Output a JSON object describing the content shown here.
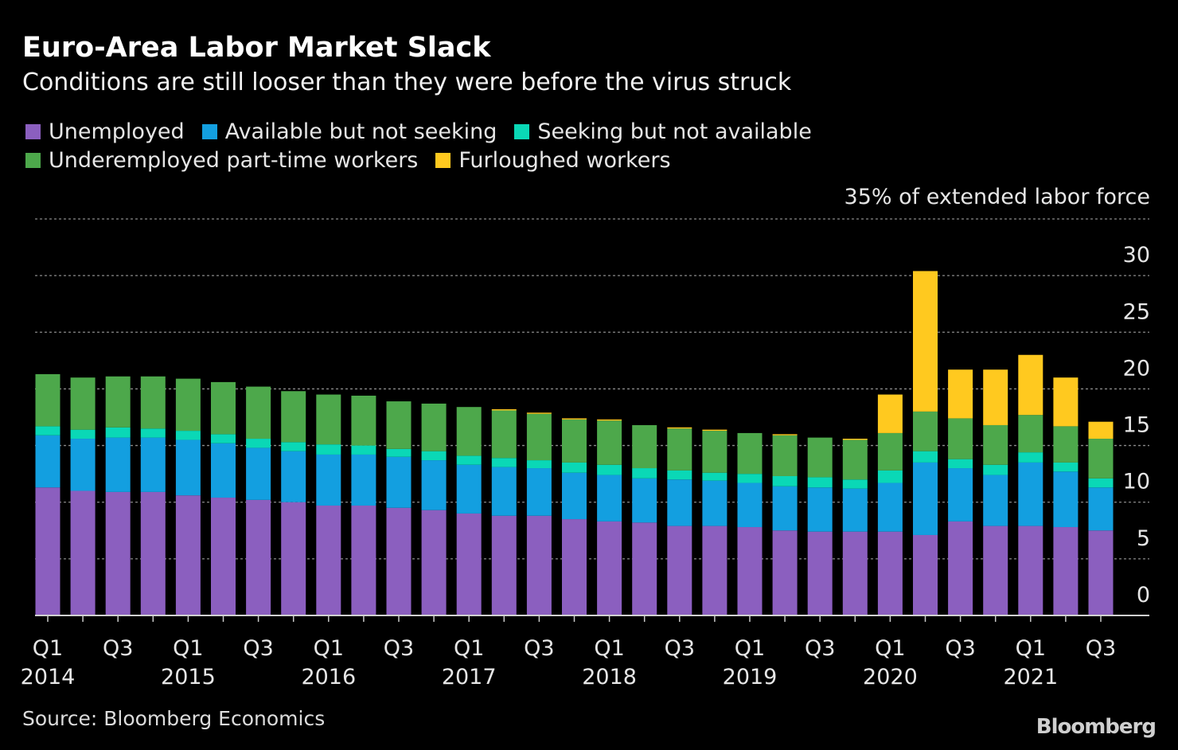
{
  "chart_data": {
    "type": "bar",
    "stacked": true,
    "title": "Euro-Area Labor Market Slack",
    "subtitle": "Conditions are still looser than they were before the virus struck",
    "ylabel": "35% of extended labor force",
    "ylim": [
      0,
      35
    ],
    "yticks": [
      0,
      5,
      10,
      15,
      20,
      25,
      30
    ],
    "ytick_labels": [
      "0",
      "5",
      "10",
      "15",
      "20",
      "25",
      "30"
    ],
    "grid": true,
    "legend_position": "top-left",
    "categories": [
      "2014 Q1",
      "2014 Q2",
      "2014 Q3",
      "2014 Q4",
      "2015 Q1",
      "2015 Q2",
      "2015 Q3",
      "2015 Q4",
      "2016 Q1",
      "2016 Q2",
      "2016 Q3",
      "2016 Q4",
      "2017 Q1",
      "2017 Q2",
      "2017 Q3",
      "2017 Q4",
      "2018 Q1",
      "2018 Q2",
      "2018 Q3",
      "2018 Q4",
      "2019 Q1",
      "2019 Q2",
      "2019 Q3",
      "2019 Q4",
      "2020 Q1",
      "2020 Q2",
      "2020 Q3",
      "2020 Q4",
      "2021 Q1",
      "2021 Q2",
      "2021 Q3"
    ],
    "xtick_labels": [
      {
        "q": "Q1",
        "year": "2014"
      },
      {
        "q": "Q3",
        "year": ""
      },
      {
        "q": "Q1",
        "year": "2015"
      },
      {
        "q": "Q3",
        "year": ""
      },
      {
        "q": "Q1",
        "year": "2016"
      },
      {
        "q": "Q3",
        "year": ""
      },
      {
        "q": "Q1",
        "year": "2017"
      },
      {
        "q": "Q3",
        "year": ""
      },
      {
        "q": "Q1",
        "year": "2018"
      },
      {
        "q": "Q3",
        "year": ""
      },
      {
        "q": "Q1",
        "year": "2019"
      },
      {
        "q": "Q3",
        "year": ""
      },
      {
        "q": "Q1",
        "year": "2020"
      },
      {
        "q": "Q3",
        "year": ""
      },
      {
        "q": "Q1",
        "year": "2021"
      },
      {
        "q": "Q3",
        "year": ""
      }
    ],
    "series": [
      {
        "name": "Unemployed",
        "color": "#8b5fbf",
        "values": [
          11.3,
          11.0,
          10.9,
          10.9,
          10.6,
          10.4,
          10.2,
          10.0,
          9.7,
          9.7,
          9.5,
          9.3,
          9.0,
          8.8,
          8.8,
          8.5,
          8.3,
          8.2,
          7.9,
          7.9,
          7.8,
          7.5,
          7.4,
          7.4,
          7.4,
          7.1,
          8.3,
          7.9,
          7.9,
          7.8,
          7.5
        ]
      },
      {
        "name": "Available but not seeking",
        "color": "#139fe0",
        "values": [
          4.6,
          4.6,
          4.8,
          4.8,
          4.9,
          4.8,
          4.6,
          4.5,
          4.5,
          4.5,
          4.5,
          4.4,
          4.3,
          4.3,
          4.2,
          4.1,
          4.1,
          3.9,
          4.1,
          4.0,
          3.9,
          3.9,
          3.9,
          3.8,
          4.3,
          6.4,
          4.7,
          4.5,
          5.6,
          4.9,
          3.8
        ]
      },
      {
        "name": "Seeking but not available",
        "color": "#0ad8b6",
        "values": [
          0.8,
          0.8,
          0.9,
          0.8,
          0.8,
          0.8,
          0.8,
          0.8,
          0.9,
          0.8,
          0.7,
          0.8,
          0.8,
          0.8,
          0.7,
          0.9,
          0.9,
          0.9,
          0.8,
          0.7,
          0.8,
          0.9,
          0.9,
          0.8,
          1.1,
          1.0,
          0.8,
          0.9,
          0.9,
          0.8,
          0.8
        ]
      },
      {
        "name": "Underemployed part-time workers",
        "color": "#4da84b",
        "values": [
          4.6,
          4.6,
          4.5,
          4.6,
          4.6,
          4.6,
          4.6,
          4.5,
          4.4,
          4.4,
          4.2,
          4.2,
          4.3,
          4.2,
          4.1,
          3.8,
          3.9,
          3.8,
          3.7,
          3.7,
          3.6,
          3.6,
          3.5,
          3.5,
          3.3,
          3.5,
          3.6,
          3.5,
          3.3,
          3.2,
          3.5
        ]
      },
      {
        "name": "Furloughed workers",
        "color": "#ffc91f",
        "values": [
          0,
          0,
          0,
          0,
          0,
          0,
          0,
          0,
          0,
          0,
          0,
          0,
          0,
          0.1,
          0.1,
          0.1,
          0.1,
          0,
          0.1,
          0.1,
          0,
          0.1,
          0,
          0.1,
          3.4,
          12.4,
          4.3,
          4.9,
          5.3,
          4.3,
          1.5
        ]
      }
    ]
  },
  "legend_rows": [
    [
      0,
      1,
      2
    ],
    [
      3,
      4
    ]
  ],
  "source": "Source: Bloomberg Economics",
  "logo": "Bloomberg"
}
